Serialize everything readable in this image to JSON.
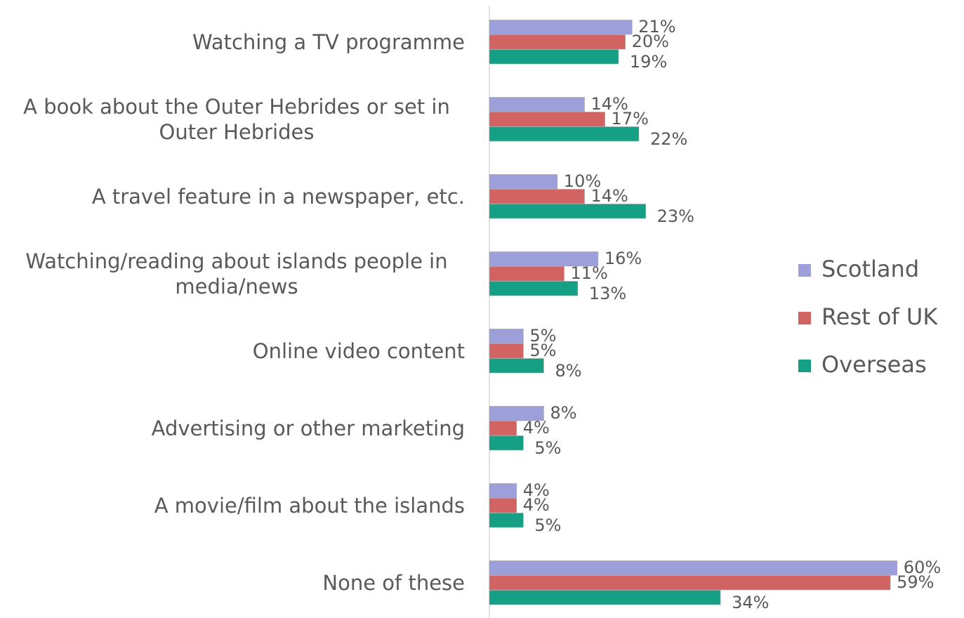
{
  "chart_data": {
    "type": "bar",
    "orientation": "horizontal",
    "categories": [
      "Watching a TV programme",
      "A book about the Outer Hebrides or set in Outer Hebrides",
      "A travel feature in a newspaper, etc.",
      "Watching/reading about islands people in media/news",
      "Online video content",
      "Advertising or other marketing",
      "A movie/film about the islands",
      "None of these"
    ],
    "series": [
      {
        "name": "Scotland",
        "color": "#9c9fd9",
        "values": [
          21,
          14,
          10,
          16,
          5,
          8,
          4,
          60
        ],
        "value_labels": [
          "21%",
          "14%",
          "10%",
          "16%",
          "5%",
          "8%",
          "4%",
          "60%"
        ]
      },
      {
        "name": "Rest of UK",
        "color": "#d16363",
        "values": [
          20,
          17,
          14,
          11,
          5,
          4,
          4,
          59
        ],
        "value_labels": [
          "20%",
          "17%",
          "14%",
          "11%",
          "5%",
          "4%",
          "4%",
          "59%"
        ]
      },
      {
        "name": "Overseas",
        "color": "#15a086",
        "values": [
          19,
          22,
          23,
          13,
          8,
          5,
          5,
          34
        ],
        "value_labels": [
          "19%",
          "22%",
          "23%",
          "13%",
          "8%",
          "5%",
          "5%",
          "34%"
        ]
      }
    ],
    "legend": "right"
  }
}
